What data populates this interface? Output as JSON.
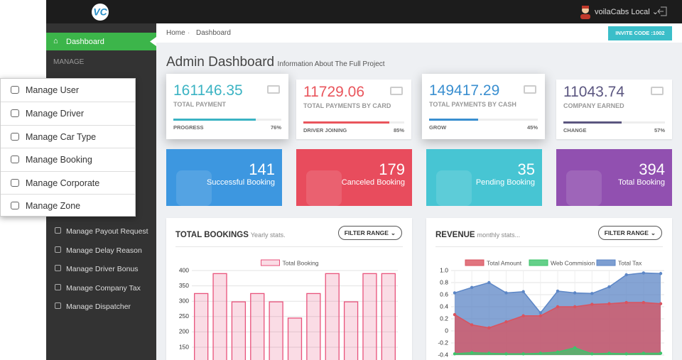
{
  "topbar": {
    "brand": "VC",
    "user": "voilaCabs Local"
  },
  "sidebar": {
    "active": "Dashboard",
    "section": "MANAGE",
    "items": [
      "Manage Payout Request",
      "Manage Delay Reason",
      "Manage Driver Bonus",
      "Manage Company Tax",
      "Manage Dispatcher"
    ]
  },
  "dropdown": {
    "items": [
      "Manage User",
      "Manage Driver",
      "Manage Car Type",
      "Manage Booking",
      "Manage Corporate",
      "Manage Zone"
    ]
  },
  "breadcrumb": [
    "Home",
    "Dashboard"
  ],
  "invite_button": "INVITE CODE :1002",
  "page": {
    "title": "Admin Dashboard",
    "subtitle": "Information About The Full Project"
  },
  "stat_cards": [
    {
      "value": "161146.35",
      "label": "TOTAL PAYMENT",
      "footer": "PROGRESS",
      "progress": 76,
      "progress_label": "76%",
      "color": "#3bb3c3"
    },
    {
      "value": "11729.06",
      "label": "TOTAL PAYMENTS BY CARD",
      "footer": "DRIVER JOINING",
      "progress": 85,
      "progress_label": "85%",
      "color": "#e9555c"
    },
    {
      "value": "149417.29",
      "label": "TOTAL PAYMENTS BY CASH",
      "footer": "GROW",
      "progress": 45,
      "progress_label": "45%",
      "color": "#3a8fd0"
    },
    {
      "value": "11043.74",
      "label": "COMPANY EARNED",
      "footer": "CHANGE",
      "progress": 57,
      "progress_label": "57%",
      "color": "#5b5680"
    }
  ],
  "tiles": [
    {
      "value": "141",
      "label": "Successful Booking",
      "color": "#3d97e0"
    },
    {
      "value": "179",
      "label": "Canceled Booking",
      "color": "#e84c5d"
    },
    {
      "value": "35",
      "label": "Pending Booking",
      "color": "#47c5d3"
    },
    {
      "value": "394",
      "label": "Total Booking",
      "color": "#9150b0"
    }
  ],
  "chart_data": [
    {
      "type": "bar",
      "title": "TOTAL BOOKINGS",
      "subtitle": "Yearly stats.",
      "button": "FILTER RANGE",
      "series": [
        {
          "name": "Total Booking",
          "color": "#e8527b",
          "values": [
            325,
            390,
            298,
            325,
            298,
            245,
            325,
            390,
            298,
            390,
            390
          ]
        }
      ],
      "ylim": [
        100,
        400
      ],
      "yticks": [
        150,
        200,
        250,
        300,
        350,
        400
      ],
      "grid": true
    },
    {
      "type": "area",
      "title": "REVENUE",
      "subtitle": "monthly stats...",
      "button": "FILTER RANGE",
      "series": [
        {
          "name": "Total Amount",
          "color": "#d9535f",
          "values": [
            0.27,
            0.1,
            0.05,
            0.15,
            0.25,
            0.25,
            0.4,
            0.4,
            0.44,
            0.45,
            0.47,
            0.47,
            0.45
          ]
        },
        {
          "name": "Web Commision",
          "color": "#3dc46b",
          "values": [
            -0.38,
            -0.36,
            -0.37,
            -0.38,
            -0.38,
            -0.37,
            -0.35,
            -0.28,
            -0.38,
            -0.37,
            -0.38,
            -0.37,
            -0.37
          ]
        },
        {
          "name": "Total Tax",
          "color": "#5c86c6",
          "values": [
            0.63,
            0.72,
            0.8,
            0.63,
            0.65,
            0.3,
            0.66,
            0.63,
            0.62,
            0.73,
            0.93,
            0.96,
            0.95
          ]
        }
      ],
      "ylim": [
        -0.4,
        1.0
      ],
      "yticks": [
        {
          "value": 1,
          "label": "1.0"
        },
        0.8,
        0.6,
        0.4,
        0.2,
        0,
        -0.2,
        -0.4
      ],
      "grid": true
    }
  ]
}
